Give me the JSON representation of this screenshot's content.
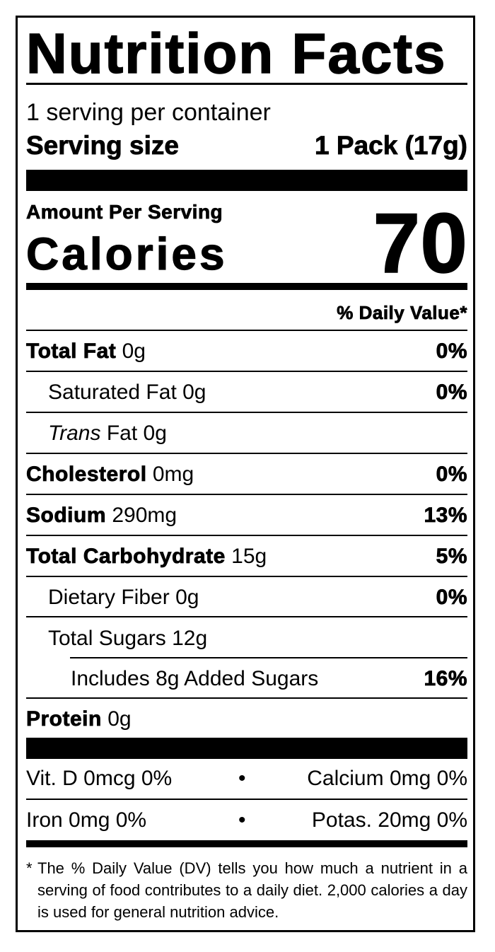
{
  "title": "Nutrition Facts",
  "servings": "1 serving per container",
  "serving_size": {
    "label": "Serving size",
    "value": "1 Pack (17g)"
  },
  "amount_per_serving": "Amount Per Serving",
  "calories": {
    "label": "Calories",
    "value": "70"
  },
  "daily_value_header": "% Daily Value*",
  "nutrients": [
    {
      "name": "Total Fat",
      "amount": "0g",
      "dv": "0%"
    },
    {
      "name": "Saturated Fat",
      "amount": "0g",
      "dv": "0%"
    },
    {
      "name_italic": "Trans",
      "name": "Fat",
      "amount": "0g"
    },
    {
      "name": "Cholesterol",
      "amount": "0mg",
      "dv": "0%"
    },
    {
      "name": "Sodium",
      "amount": "290mg",
      "dv": "13%"
    },
    {
      "name": "Total Carbohydrate",
      "amount": "15g",
      "dv": "5%"
    },
    {
      "name": "Dietary Fiber",
      "amount": "0g",
      "dv": "0%"
    },
    {
      "name": "Total Sugars",
      "amount": "12g"
    },
    {
      "name": "Includes 8g Added Sugars",
      "dv": "16%"
    },
    {
      "name": "Protein",
      "amount": "0g"
    }
  ],
  "separator": "•",
  "vitamins": [
    [
      "Vit. D 0mcg 0%",
      "Calcium 0mg 0%"
    ],
    [
      "Iron 0mg 0%",
      "Potas. 20mg 0%"
    ]
  ],
  "footnote_mark": "*",
  "footnote": "The % Daily Value (DV) tells you how much a nutrient in a serving of food contributes to a daily diet. 2,000 calories a day is used for general nutrition advice."
}
